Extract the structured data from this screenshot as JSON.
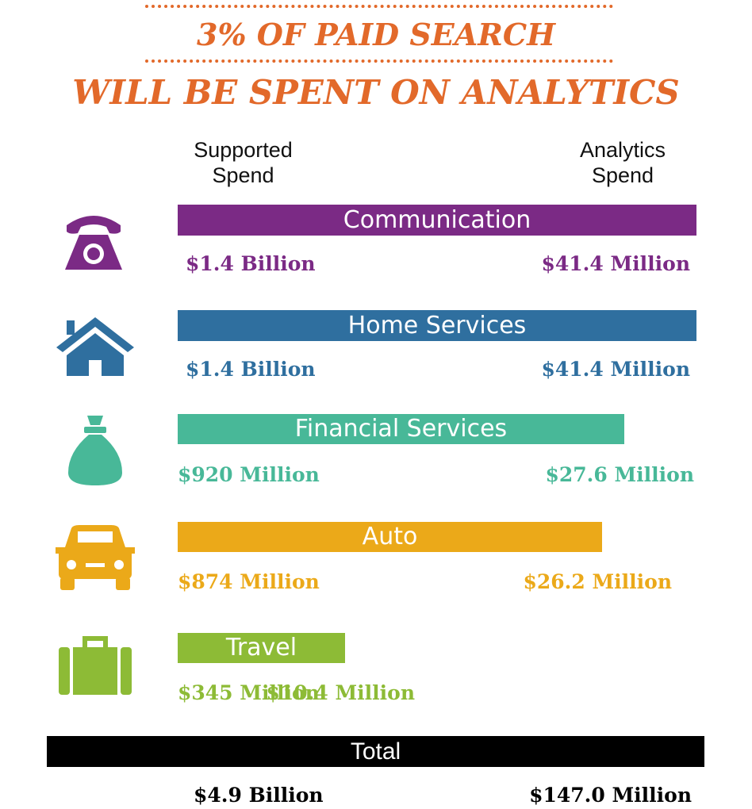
{
  "header": {
    "line1": "3% OF PAID SEARCH",
    "line2": "WILL BE SPENT ON ANALYTICS"
  },
  "columns": {
    "left": "Supported Spend",
    "right": "Analytics Spend"
  },
  "colors": {
    "accent": "#e2692a",
    "communication": "#7b2a85",
    "home_services": "#2f6f9f",
    "financial_services": "#48b898",
    "auto": "#eba919",
    "travel": "#8dbb36"
  },
  "categories": [
    {
      "name": "Communication",
      "icon": "telephone-icon",
      "supported": "$1.4 Billion",
      "analytics": "$41.4 Million"
    },
    {
      "name": "Home Services",
      "icon": "house-icon",
      "supported": "$1.4 Billion",
      "analytics": "$41.4 Million"
    },
    {
      "name": "Financial Services",
      "icon": "money-bag-icon",
      "supported": "$920 Million",
      "analytics": "$27.6 Million"
    },
    {
      "name": "Auto",
      "icon": "car-icon",
      "supported": "$874 Million",
      "analytics": "$26.2 Million"
    },
    {
      "name": "Travel",
      "icon": "suitcase-icon",
      "supported": "$345 Million",
      "analytics": "$10.4 Million"
    }
  ],
  "total": {
    "label": "Total",
    "supported": "$4.9 Billion",
    "analytics": "$147.0 Million"
  },
  "chart_data": {
    "type": "bar",
    "categories": [
      "Communication",
      "Home Services",
      "Financial Services",
      "Auto",
      "Travel"
    ],
    "series": [
      {
        "name": "Supported Spend",
        "unit": "USD million",
        "values": [
          1400,
          1400,
          920,
          874,
          345
        ]
      },
      {
        "name": "Analytics Spend",
        "unit": "USD million",
        "values": [
          41.4,
          41.4,
          27.6,
          26.2,
          10.4
        ]
      }
    ],
    "totals": {
      "Supported Spend": 4900,
      "Analytics Spend": 147.0
    },
    "title": "3% OF PAID SEARCH WILL BE SPENT ON ANALYTICS"
  }
}
